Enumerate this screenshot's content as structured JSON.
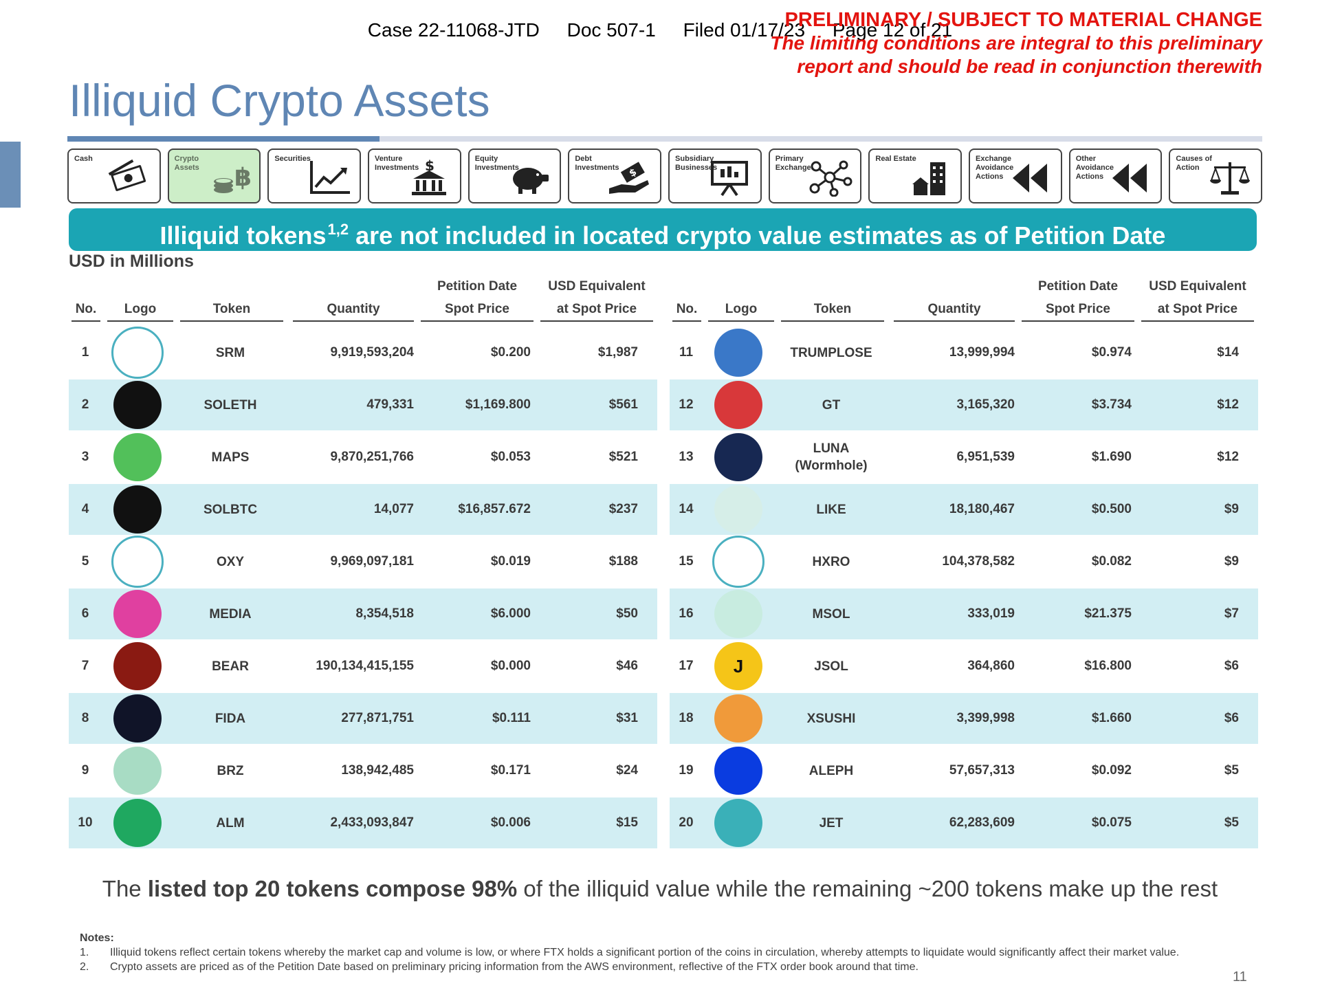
{
  "header": {
    "case": "Case 22-11068-JTD",
    "doc": "Doc 507-1",
    "filed": "Filed 01/17/23",
    "page": "Page 12 of 21"
  },
  "disclaimer": {
    "line1": "PRELIMINARY / SUBJECT TO MATERIAL CHANGE",
    "line2": "The limiting conditions are integral to this preliminary",
    "line3": "report and should be read in conjunction therewith"
  },
  "title": "Illiquid Crypto Assets",
  "nav": [
    {
      "label": "Cash",
      "icon": "cash-icon"
    },
    {
      "label": "Crypto Assets",
      "icon": "bitcoin-coins-icon",
      "active": true
    },
    {
      "label": "Securities",
      "icon": "line-chart-icon"
    },
    {
      "label": "Venture Investments",
      "icon": "bank-dollar-icon"
    },
    {
      "label": "Equity Investments",
      "icon": "piggy-bank-icon"
    },
    {
      "label": "Debt Investments",
      "icon": "hand-money-icon"
    },
    {
      "label": "Subsidiary Businesses",
      "icon": "presentation-icon"
    },
    {
      "label": "Primary Exchanges",
      "icon": "network-icon"
    },
    {
      "label": "Real Estate",
      "icon": "buildings-icon"
    },
    {
      "label": "Exchange Avoidance Actions",
      "icon": "rewind-icon"
    },
    {
      "label": "Other Avoidance Actions",
      "icon": "rewind-icon"
    },
    {
      "label": "Causes of Action",
      "icon": "scales-icon"
    }
  ],
  "banner": {
    "text_a": "Illiquid tokens",
    "sup": "1,2",
    "text_b": " are not included in located crypto value estimates as of Petition Date"
  },
  "units": "USD in Millions",
  "columns": {
    "no": "No.",
    "logo": "Logo",
    "token": "Token",
    "quantity": "Quantity",
    "spot_l1": "Petition Date",
    "spot_l2": "Spot Price",
    "usd_l1": "USD Equivalent",
    "usd_l2": "at Spot Price"
  },
  "left_rows": [
    {
      "no": "1",
      "token": "SRM",
      "quantity": "9,919,593,204",
      "spot": "$0.200",
      "usd": "$1,987",
      "logo_color": "#ffffff",
      "logo_text": ""
    },
    {
      "no": "2",
      "token": "SOLETH",
      "quantity": "479,331",
      "spot": "$1,169.800",
      "usd": "$561",
      "logo_color": "#111111",
      "logo_text": ""
    },
    {
      "no": "3",
      "token": "MAPS",
      "quantity": "9,870,251,766",
      "spot": "$0.053",
      "usd": "$521",
      "logo_color": "#52c05a",
      "logo_text": ""
    },
    {
      "no": "4",
      "token": "SOLBTC",
      "quantity": "14,077",
      "spot": "$16,857.672",
      "usd": "$237",
      "logo_color": "#111111",
      "logo_text": ""
    },
    {
      "no": "5",
      "token": "OXY",
      "quantity": "9,969,097,181",
      "spot": "$0.019",
      "usd": "$188",
      "logo_color": "#ffffff",
      "logo_text": ""
    },
    {
      "no": "6",
      "token": "MEDIA",
      "quantity": "8,354,518",
      "spot": "$6.000",
      "usd": "$50",
      "logo_color": "#e040a0",
      "logo_text": ""
    },
    {
      "no": "7",
      "token": "BEAR",
      "quantity": "190,134,415,155",
      "spot": "$0.000",
      "usd": "$46",
      "logo_color": "#8a1a12",
      "logo_text": ""
    },
    {
      "no": "8",
      "token": "FIDA",
      "quantity": "277,871,751",
      "spot": "$0.111",
      "usd": "$31",
      "logo_color": "#101428",
      "logo_text": ""
    },
    {
      "no": "9",
      "token": "BRZ",
      "quantity": "138,942,485",
      "spot": "$0.171",
      "usd": "$24",
      "logo_color": "#a8dcc4",
      "logo_text": ""
    },
    {
      "no": "10",
      "token": "ALM",
      "quantity": "2,433,093,847",
      "spot": "$0.006",
      "usd": "$15",
      "logo_color": "#1fa860",
      "logo_text": ""
    }
  ],
  "right_rows": [
    {
      "no": "11",
      "token": "TRUMPLOSE",
      "quantity": "13,999,994",
      "spot": "$0.974",
      "usd": "$14",
      "logo_color": "#3a78c8",
      "logo_text": ""
    },
    {
      "no": "12",
      "token": "GT",
      "quantity": "3,165,320",
      "spot": "$3.734",
      "usd": "$12",
      "logo_color": "#d8383a",
      "logo_text": ""
    },
    {
      "no": "13",
      "token": "LUNA\n(Wormhole)",
      "token_l1": "LUNA",
      "token_l2": "(Wormhole)",
      "quantity": "6,951,539",
      "spot": "$1.690",
      "usd": "$12",
      "logo_color": "#172852",
      "logo_text": ""
    },
    {
      "no": "14",
      "token": "LIKE",
      "quantity": "18,180,467",
      "spot": "$0.500",
      "usd": "$9",
      "logo_color": "#d6eee8",
      "logo_text": ""
    },
    {
      "no": "15",
      "token": "HXRO",
      "quantity": "104,378,582",
      "spot": "$0.082",
      "usd": "$9",
      "logo_color": "#ffffff",
      "logo_text": ""
    },
    {
      "no": "16",
      "token": "MSOL",
      "quantity": "333,019",
      "spot": "$21.375",
      "usd": "$7",
      "logo_color": "#c8ece0",
      "logo_text": ""
    },
    {
      "no": "17",
      "token": "JSOL",
      "quantity": "364,860",
      "spot": "$16.800",
      "usd": "$6",
      "logo_color": "#f5c518",
      "logo_text": "J"
    },
    {
      "no": "18",
      "token": "XSUSHI",
      "quantity": "3,399,998",
      "spot": "$1.660",
      "usd": "$6",
      "logo_color": "#f09a3a",
      "logo_text": ""
    },
    {
      "no": "19",
      "token": "ALEPH",
      "quantity": "57,657,313",
      "spot": "$0.092",
      "usd": "$5",
      "logo_color": "#0a3ce0",
      "logo_text": ""
    },
    {
      "no": "20",
      "token": "JET",
      "quantity": "62,283,609",
      "spot": "$0.075",
      "usd": "$5",
      "logo_color": "#3ab0b8",
      "logo_text": ""
    }
  ],
  "summary": {
    "a": "The ",
    "b": "listed top 20 tokens compose 98%",
    "c": " of the illiquid value while the remaining ~200 tokens make up the rest"
  },
  "notes": {
    "title": "Notes:",
    "items": [
      {
        "n": "1.",
        "text": "Illiquid tokens reflect certain tokens whereby the market cap and volume is low, or where FTX holds a significant portion of the coins in circulation, whereby attempts to liquidate would significantly affect their market value."
      },
      {
        "n": "2.",
        "text": "Crypto assets are priced as of the Petition Date based on preliminary pricing information from the AWS environment, reflective of the FTX order book around that time."
      }
    ]
  },
  "page_number": "11"
}
